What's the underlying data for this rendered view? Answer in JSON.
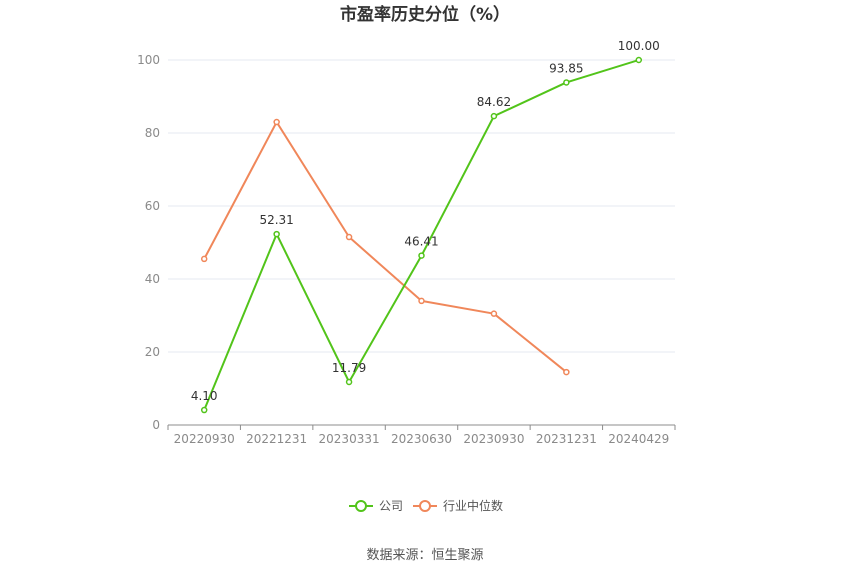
{
  "chart_data": {
    "type": "line",
    "title": "市盈率历史分位（%）",
    "categories": [
      "20220930",
      "20221231",
      "20230331",
      "20230630",
      "20230930",
      "20231231",
      "20240429"
    ],
    "ylim": [
      0,
      100
    ],
    "yticks": [
      0,
      20,
      40,
      60,
      80,
      100
    ],
    "grid": true,
    "legend_position": "bottom",
    "series": [
      {
        "name": "公司",
        "color": "#52c41a",
        "values": [
          4.1,
          52.31,
          11.79,
          46.41,
          84.62,
          93.85,
          100.0
        ],
        "labels": [
          "4.10",
          "52.31",
          "11.79",
          "46.41",
          "84.62",
          "93.85",
          "100.00"
        ]
      },
      {
        "name": "行业中位数",
        "color": "#f0875a",
        "values": [
          45.5,
          83.0,
          51.5,
          34.0,
          30.5,
          14.5,
          null
        ],
        "labels": null
      }
    ]
  },
  "footer": {
    "source": "数据来源：恒生聚源"
  }
}
